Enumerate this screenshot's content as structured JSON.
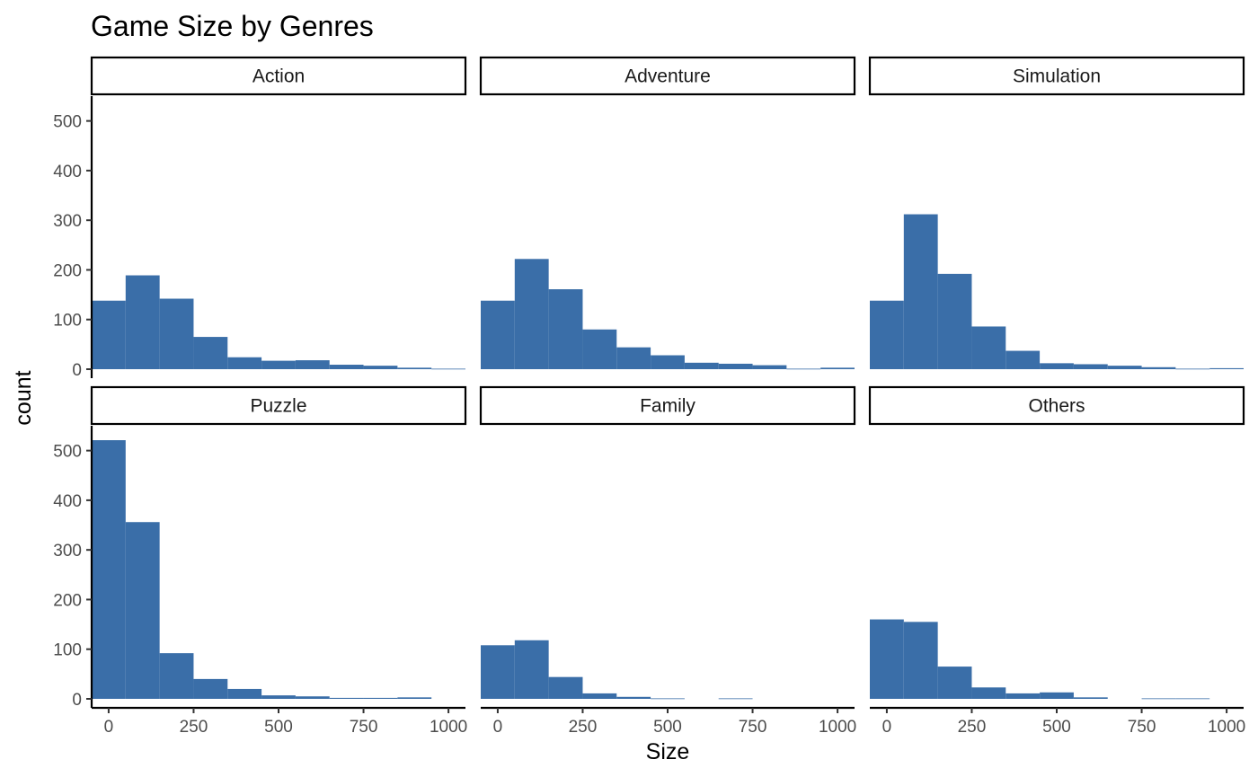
{
  "chart_data": {
    "type": "bar",
    "title": "Game Size by Genres",
    "xlabel": "Size",
    "ylabel": "count",
    "xlim": [
      -50,
      1050
    ],
    "ylim": [
      0,
      550
    ],
    "x_ticks": [
      0,
      250,
      500,
      750,
      1000
    ],
    "y_ticks": [
      0,
      100,
      200,
      300,
      400,
      500
    ],
    "bin_width": 100,
    "bin_centers": [
      0,
      100,
      200,
      300,
      400,
      500,
      600,
      700,
      800,
      900,
      1000
    ],
    "bar_color": "#3A6EA8",
    "grid": false,
    "legend": "none",
    "panels": [
      {
        "name": "Action",
        "counts": [
          138,
          189,
          142,
          65,
          24,
          17,
          18,
          9,
          7,
          3,
          1
        ]
      },
      {
        "name": "Adventure",
        "counts": [
          138,
          222,
          161,
          80,
          44,
          28,
          13,
          11,
          8,
          1,
          3
        ]
      },
      {
        "name": "Simulation",
        "counts": [
          138,
          312,
          192,
          86,
          37,
          12,
          10,
          7,
          4,
          1,
          2
        ]
      },
      {
        "name": "Puzzle",
        "counts": [
          521,
          356,
          92,
          40,
          20,
          7,
          5,
          2,
          2,
          3,
          0
        ]
      },
      {
        "name": "Family",
        "counts": [
          108,
          118,
          44,
          11,
          4,
          1,
          0,
          1,
          0,
          0,
          0
        ]
      },
      {
        "name": "Others",
        "counts": [
          160,
          155,
          65,
          23,
          11,
          13,
          3,
          0,
          1,
          1,
          0
        ]
      }
    ]
  }
}
